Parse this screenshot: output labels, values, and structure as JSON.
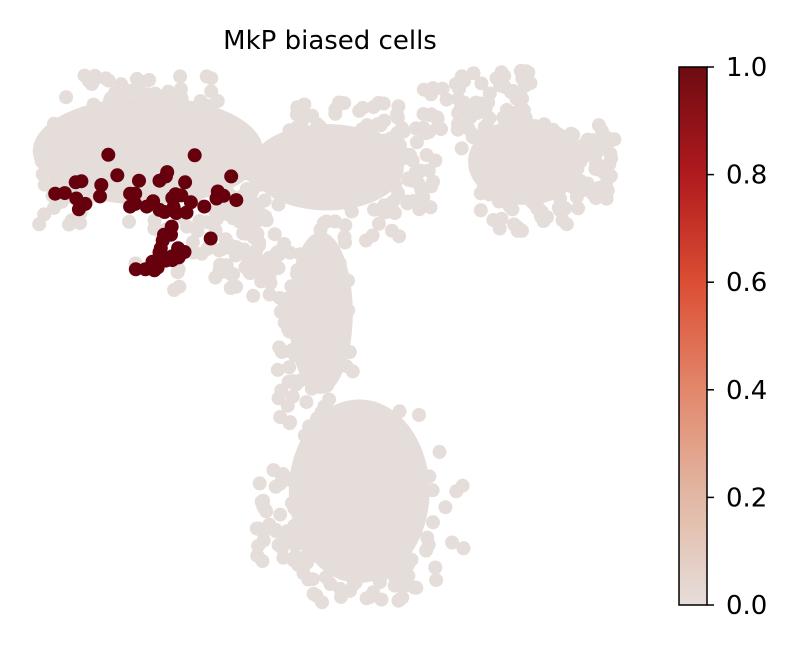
{
  "chart_data": {
    "type": "scatter",
    "title": "MkP biased cells",
    "xlabel": "",
    "ylabel": "",
    "axes_visible": false,
    "colorbar": {
      "range": [
        0.0,
        1.0
      ],
      "ticks": [
        0.0,
        0.2,
        0.4,
        0.6,
        0.8,
        1.0
      ],
      "tick_labels": [
        "0.0",
        "0.2",
        "0.4",
        "0.6",
        "0.8",
        "1.0"
      ],
      "colormap": [
        "#e6ddd9",
        "#e2b8a4",
        "#e2876b",
        "#dc4e34",
        "#b01a1d",
        "#6e0b12"
      ]
    },
    "background_color": "#e5ddd9",
    "highlight_color": "#67000d",
    "series": [
      {
        "value": 1.0,
        "x": [
          0.055,
          0.07,
          0.087,
          0.096,
          0.088,
          0.102,
          0.092,
          0.127,
          0.125,
          0.138,
          0.152,
          0.172,
          0.18,
          0.172,
          0.18,
          0.186,
          0.198,
          0.208,
          0.218,
          0.228,
          0.226,
          0.218,
          0.23,
          0.242,
          0.244,
          0.24,
          0.252,
          0.26,
          0.258,
          0.267,
          0.238,
          0.243,
          0.288,
          0.307,
          0.309,
          0.318,
          0.33,
          0.338,
          0.273,
          0.298,
          0.237,
          0.225,
          0.229,
          0.236,
          0.223,
          0.22,
          0.218,
          0.247,
          0.257,
          0.238,
          0.228,
          0.238,
          0.248,
          0.231,
          0.207,
          0.215,
          0.181,
          0.196,
          0.21
        ],
        "y": [
          0.229,
          0.228,
          0.208,
          0.206,
          0.238,
          0.248,
          0.258,
          0.213,
          0.234,
          0.157,
          0.195,
          0.229,
          0.229,
          0.253,
          0.248,
          0.205,
          0.253,
          0.243,
          0.259,
          0.197,
          0.263,
          0.205,
          0.189,
          0.235,
          0.265,
          0.254,
          0.232,
          0.264,
          0.208,
          0.245,
          0.237,
          0.23,
          0.253,
          0.238,
          0.225,
          0.233,
          0.197,
          0.241,
          0.158,
          0.312,
          0.29,
          0.305,
          0.305,
          0.305,
          0.316,
          0.33,
          0.338,
          0.33,
          0.337,
          0.345,
          0.353,
          0.352,
          0.347,
          0.348,
          0.355,
          0.366,
          0.369,
          0.369,
          0.371
        ]
      }
    ]
  }
}
